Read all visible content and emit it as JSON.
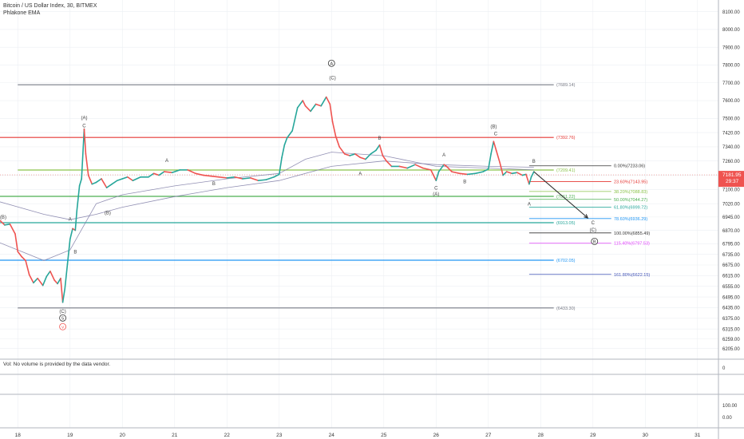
{
  "header": {
    "symbol_line": "Bitcoin / US Dollar Index, 30, BITMEX",
    "indicator_line": "Phlakone EMA"
  },
  "volume_note": "Vol: No volume is provided by the data vendor.",
  "colors": {
    "up": "#26a69a",
    "down": "#ef5350",
    "ema": "#7e7ba6",
    "grid": "#eceff3",
    "price_tag": "#ef5350"
  },
  "chart_data": {
    "type": "candlestick",
    "title": "Bitcoin / US Dollar Index, 30, BITMEX",
    "x_ticks": [
      "18",
      "19",
      "20",
      "21",
      "22",
      "23",
      "24",
      "25",
      "26",
      "27",
      "28",
      "29",
      "30",
      "31"
    ],
    "x_tick_values": [
      18,
      19,
      20,
      21,
      22,
      23,
      24,
      25,
      26,
      27,
      28,
      29,
      30,
      31
    ],
    "xlim": [
      17.66,
      31.4
    ],
    "ylim": [
      6190,
      8130
    ],
    "y_ticks": [
      "8100.00",
      "8000.00",
      "7900.00",
      "7800.00",
      "7700.00",
      "7600.00",
      "7500.00",
      "7420.00",
      "7340.00",
      "7260.00",
      "7180.00",
      "7100.00",
      "7020.00",
      "6945.00",
      "6870.00",
      "6795.00",
      "6735.00",
      "6675.00",
      "6615.00",
      "6555.00",
      "6495.00",
      "6435.00",
      "6375.00",
      "6315.00",
      "6259.00",
      "6205.00"
    ],
    "y_tick_values": [
      8100,
      8000,
      7900,
      7800,
      7700,
      7600,
      7500,
      7420,
      7340,
      7260,
      7180,
      7100,
      7020,
      6945,
      6870,
      6795,
      6735,
      6675,
      6615,
      6555,
      6495,
      6435,
      6375,
      6315,
      6259,
      6205
    ],
    "last_price": {
      "price": "7181.95",
      "countdown": "29:37",
      "value": 7181.95
    },
    "volume_y_ticks": [
      "0",
      "100.00",
      "0.00"
    ],
    "price_path": [
      [
        17.66,
        6925
      ],
      [
        17.75,
        6900
      ],
      [
        17.85,
        6905
      ],
      [
        17.95,
        6850
      ],
      [
        18.0,
        6750
      ],
      [
        18.08,
        6720
      ],
      [
        18.15,
        6700
      ],
      [
        18.22,
        6620
      ],
      [
        18.3,
        6575
      ],
      [
        18.38,
        6600
      ],
      [
        18.48,
        6560
      ],
      [
        18.55,
        6610
      ],
      [
        18.62,
        6640
      ],
      [
        18.7,
        6590
      ],
      [
        18.76,
        6570
      ],
      [
        18.82,
        6600
      ],
      [
        18.86,
        6465
      ],
      [
        18.9,
        6540
      ],
      [
        18.95,
        6680
      ],
      [
        19.0,
        6820
      ],
      [
        19.05,
        6880
      ],
      [
        19.1,
        6870
      ],
      [
        19.13,
        6980
      ],
      [
        19.18,
        7120
      ],
      [
        19.22,
        7160
      ],
      [
        19.27,
        7440
      ],
      [
        19.3,
        7300
      ],
      [
        19.35,
        7180
      ],
      [
        19.42,
        7130
      ],
      [
        19.5,
        7140
      ],
      [
        19.6,
        7160
      ],
      [
        19.7,
        7110
      ],
      [
        19.8,
        7130
      ],
      [
        19.9,
        7150
      ],
      [
        20.0,
        7160
      ],
      [
        20.1,
        7170
      ],
      [
        20.2,
        7150
      ],
      [
        20.35,
        7170
      ],
      [
        20.5,
        7170
      ],
      [
        20.6,
        7190
      ],
      [
        20.7,
        7180
      ],
      [
        20.8,
        7200
      ],
      [
        20.95,
        7195
      ],
      [
        21.1,
        7210
      ],
      [
        21.25,
        7210
      ],
      [
        21.4,
        7190
      ],
      [
        21.55,
        7180
      ],
      [
        21.7,
        7175
      ],
      [
        21.85,
        7170
      ],
      [
        22.0,
        7165
      ],
      [
        22.15,
        7170
      ],
      [
        22.3,
        7160
      ],
      [
        22.45,
        7165
      ],
      [
        22.6,
        7150
      ],
      [
        22.75,
        7155
      ],
      [
        22.9,
        7170
      ],
      [
        23.0,
        7185
      ],
      [
        23.05,
        7280
      ],
      [
        23.1,
        7350
      ],
      [
        23.15,
        7390
      ],
      [
        23.25,
        7430
      ],
      [
        23.35,
        7560
      ],
      [
        23.45,
        7600
      ],
      [
        23.5,
        7570
      ],
      [
        23.6,
        7540
      ],
      [
        23.7,
        7580
      ],
      [
        23.8,
        7570
      ],
      [
        23.9,
        7620
      ],
      [
        23.97,
        7580
      ],
      [
        24.02,
        7480
      ],
      [
        24.08,
        7400
      ],
      [
        24.15,
        7340
      ],
      [
        24.25,
        7300
      ],
      [
        24.35,
        7290
      ],
      [
        24.45,
        7300
      ],
      [
        24.55,
        7280
      ],
      [
        24.65,
        7270
      ],
      [
        24.75,
        7300
      ],
      [
        24.85,
        7320
      ],
      [
        24.92,
        7350
      ],
      [
        24.98,
        7290
      ],
      [
        25.05,
        7260
      ],
      [
        25.15,
        7230
      ],
      [
        25.3,
        7230
      ],
      [
        25.45,
        7220
      ],
      [
        25.6,
        7240
      ],
      [
        25.75,
        7220
      ],
      [
        25.9,
        7210
      ],
      [
        26.0,
        7150
      ],
      [
        26.05,
        7200
      ],
      [
        26.15,
        7240
      ],
      [
        26.2,
        7230
      ],
      [
        26.3,
        7200
      ],
      [
        26.45,
        7190
      ],
      [
        26.6,
        7185
      ],
      [
        26.75,
        7190
      ],
      [
        26.9,
        7200
      ],
      [
        27.0,
        7215
      ],
      [
        27.05,
        7300
      ],
      [
        27.1,
        7370
      ],
      [
        27.15,
        7320
      ],
      [
        27.22,
        7250
      ],
      [
        27.28,
        7180
      ],
      [
        27.35,
        7200
      ],
      [
        27.45,
        7190
      ],
      [
        27.55,
        7195
      ],
      [
        27.65,
        7180
      ],
      [
        27.72,
        7185
      ],
      [
        27.78,
        7130
      ],
      [
        27.82,
        7170
      ],
      [
        27.87,
        7200
      ]
    ],
    "series": [
      {
        "name": "",
        "values": [
          [
            17.66,
            6800
          ],
          [
            18.5,
            6700
          ],
          [
            19.0,
            6760
          ],
          [
            19.5,
            7020
          ],
          [
            20.0,
            7070
          ],
          [
            21.0,
            7120
          ],
          [
            22.0,
            7160
          ],
          [
            23.0,
            7190
          ],
          [
            23.5,
            7270
          ],
          [
            24.0,
            7310
          ],
          [
            25.0,
            7290
          ],
          [
            26.0,
            7230
          ],
          [
            27.0,
            7220
          ],
          [
            27.5,
            7215
          ],
          [
            27.87,
            7210
          ]
        ]
      },
      {
        "name": "",
        "values": [
          [
            17.66,
            7030
          ],
          [
            18.5,
            6960
          ],
          [
            19.0,
            6930
          ],
          [
            19.5,
            6960
          ],
          [
            20.0,
            7000
          ],
          [
            21.0,
            7060
          ],
          [
            22.0,
            7110
          ],
          [
            23.0,
            7150
          ],
          [
            24.0,
            7230
          ],
          [
            25.0,
            7260
          ],
          [
            26.0,
            7240
          ],
          [
            27.0,
            7230
          ],
          [
            27.87,
            7225
          ]
        ]
      }
    ],
    "horizontal_levels": [
      {
        "value": 7689.14,
        "label": "(7689.14)",
        "color": "#787b86",
        "x0": 18.0
      },
      {
        "value": 7392.76,
        "label": "(7392.76)",
        "color": "#e53935",
        "x0": 17.66
      },
      {
        "value": 7209.41,
        "label": "(7209.41)",
        "color": "#8bc34a",
        "x0": 18.0
      },
      {
        "value": 7061.22,
        "label": "(7061.22)",
        "color": "#4caf50",
        "x0": 17.66
      },
      {
        "value": 6913.05,
        "label": "(6913.05)",
        "color": "#26a69a",
        "x0": 17.66
      },
      {
        "value": 6702.05,
        "label": "(6702.05)",
        "color": "#2196f3",
        "x0": 17.66
      },
      {
        "value": 6433.3,
        "label": "(6433.30)",
        "color": "#787b86",
        "x0": 18.0
      }
    ],
    "fib_levels": [
      {
        "value": 7233.06,
        "label": "0.00%(7233.06)",
        "color": "#333333"
      },
      {
        "value": 7143.95,
        "label": "23.60%(7143.95)",
        "color": "#e53935"
      },
      {
        "value": 7088.83,
        "label": "38.20%(7088.83)",
        "color": "#8bc34a"
      },
      {
        "value": 7044.27,
        "label": "50.00%(7044.27)",
        "color": "#4caf50"
      },
      {
        "value": 6999.72,
        "label": "61.80%(6999.72)",
        "color": "#26a69a"
      },
      {
        "value": 6936.29,
        "label": "78.60%(6936.29)",
        "color": "#2196f3"
      },
      {
        "value": 6855.49,
        "label": "100.00%(6855.49)",
        "color": "#333333"
      },
      {
        "value": 6797.53,
        "label": "115.40%(6797.53)",
        "color": "#e040fb"
      },
      {
        "value": 6622.15,
        "label": "161.80%(6622.15)",
        "color": "#3f51b5"
      }
    ],
    "wave_labels": [
      {
        "text": "(B)",
        "x": 17.72,
        "y": 6935
      },
      {
        "text": "(A)",
        "x": 19.27,
        "y": 7495
      },
      {
        "text": "C",
        "x": 19.27,
        "y": 7450
      },
      {
        "text": "A",
        "x": 19.0,
        "y": 6925
      },
      {
        "text": "B",
        "x": 19.1,
        "y": 6740
      },
      {
        "text": "(B)",
        "x": 19.72,
        "y": 6960
      },
      {
        "text": "A",
        "x": 20.85,
        "y": 7255
      },
      {
        "text": "B",
        "x": 21.75,
        "y": 7125
      },
      {
        "text": "(C)",
        "x": 18.86,
        "y": 6405
      },
      {
        "text": "(C)",
        "x": 24.02,
        "y": 7720
      },
      {
        "text": "B",
        "x": 24.92,
        "y": 7380
      },
      {
        "text": "A",
        "x": 24.55,
        "y": 7180
      },
      {
        "text": "A",
        "x": 26.15,
        "y": 7285
      },
      {
        "text": "B",
        "x": 26.55,
        "y": 7135
      },
      {
        "text": "C",
        "x": 26.0,
        "y": 7100
      },
      {
        "text": "(A)",
        "x": 26.0,
        "y": 7065
      },
      {
        "text": "(B)",
        "x": 27.1,
        "y": 7445
      },
      {
        "text": "C",
        "x": 27.14,
        "y": 7405
      },
      {
        "text": "B",
        "x": 27.87,
        "y": 7250
      },
      {
        "text": "A",
        "x": 27.78,
        "y": 7010
      },
      {
        "text": "C",
        "x": 29.0,
        "y": 6903
      },
      {
        "text": "(C)",
        "x": 29.0,
        "y": 6863
      }
    ],
    "circled_labels": [
      {
        "text": "A",
        "x": 24.0,
        "y": 7810,
        "color": "#333333"
      },
      {
        "text": "5",
        "x": 18.86,
        "y": 6377,
        "color": "#333333"
      },
      {
        "text": "B",
        "x": 29.03,
        "y": 6808,
        "color": "#333333"
      },
      {
        "text": "v",
        "x": 18.86,
        "y": 6328,
        "color": "#ef5350"
      }
    ],
    "projection": [
      [
        27.87,
        7200
      ],
      [
        28.9,
        6940
      ]
    ]
  }
}
